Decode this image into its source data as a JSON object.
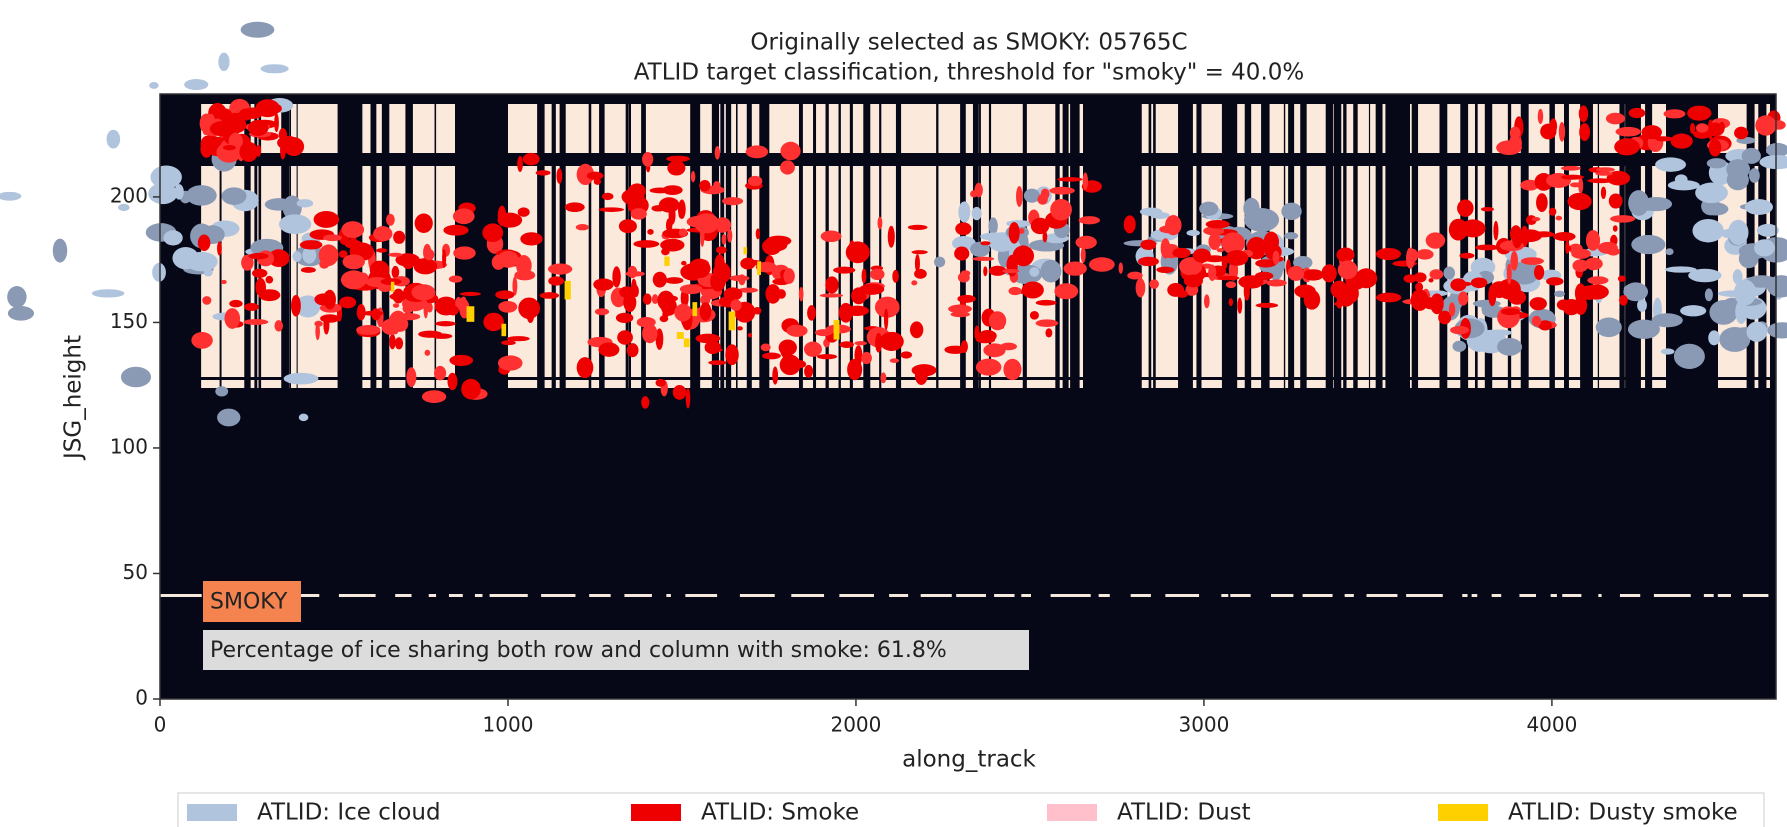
{
  "chart_data": {
    "type": "heatmap",
    "title": [
      "Originally selected as SMOKY: 05765C",
      "ATLID target classification, threshold for \"smoky\" = 40.0%"
    ],
    "x_label": "along_track",
    "y_label": "JSG_height",
    "xlim": [
      0,
      4644
    ],
    "ylim": [
      0,
      241
    ],
    "xticks": [
      0,
      1000,
      2000,
      3000,
      4000
    ],
    "yticks": [
      0,
      50,
      100,
      150,
      200
    ],
    "legend": [
      {
        "name": "ATLID: Ice cloud",
        "color": "#b0c4de"
      },
      {
        "name": "ATLID: Smoke",
        "color": "#ee0000"
      },
      {
        "name": "ATLID: Dust",
        "color": "#ffc0cb"
      },
      {
        "name": "ATLID: Dusty smoke",
        "color": "#ffd000"
      }
    ],
    "annotations": [
      {
        "text": "SMOKY",
        "color": "#f4834f"
      },
      {
        "text": "Percentage of ice sharing both row and column with smoke: 61.8%",
        "color": "#dcdcdc"
      }
    ]
  }
}
